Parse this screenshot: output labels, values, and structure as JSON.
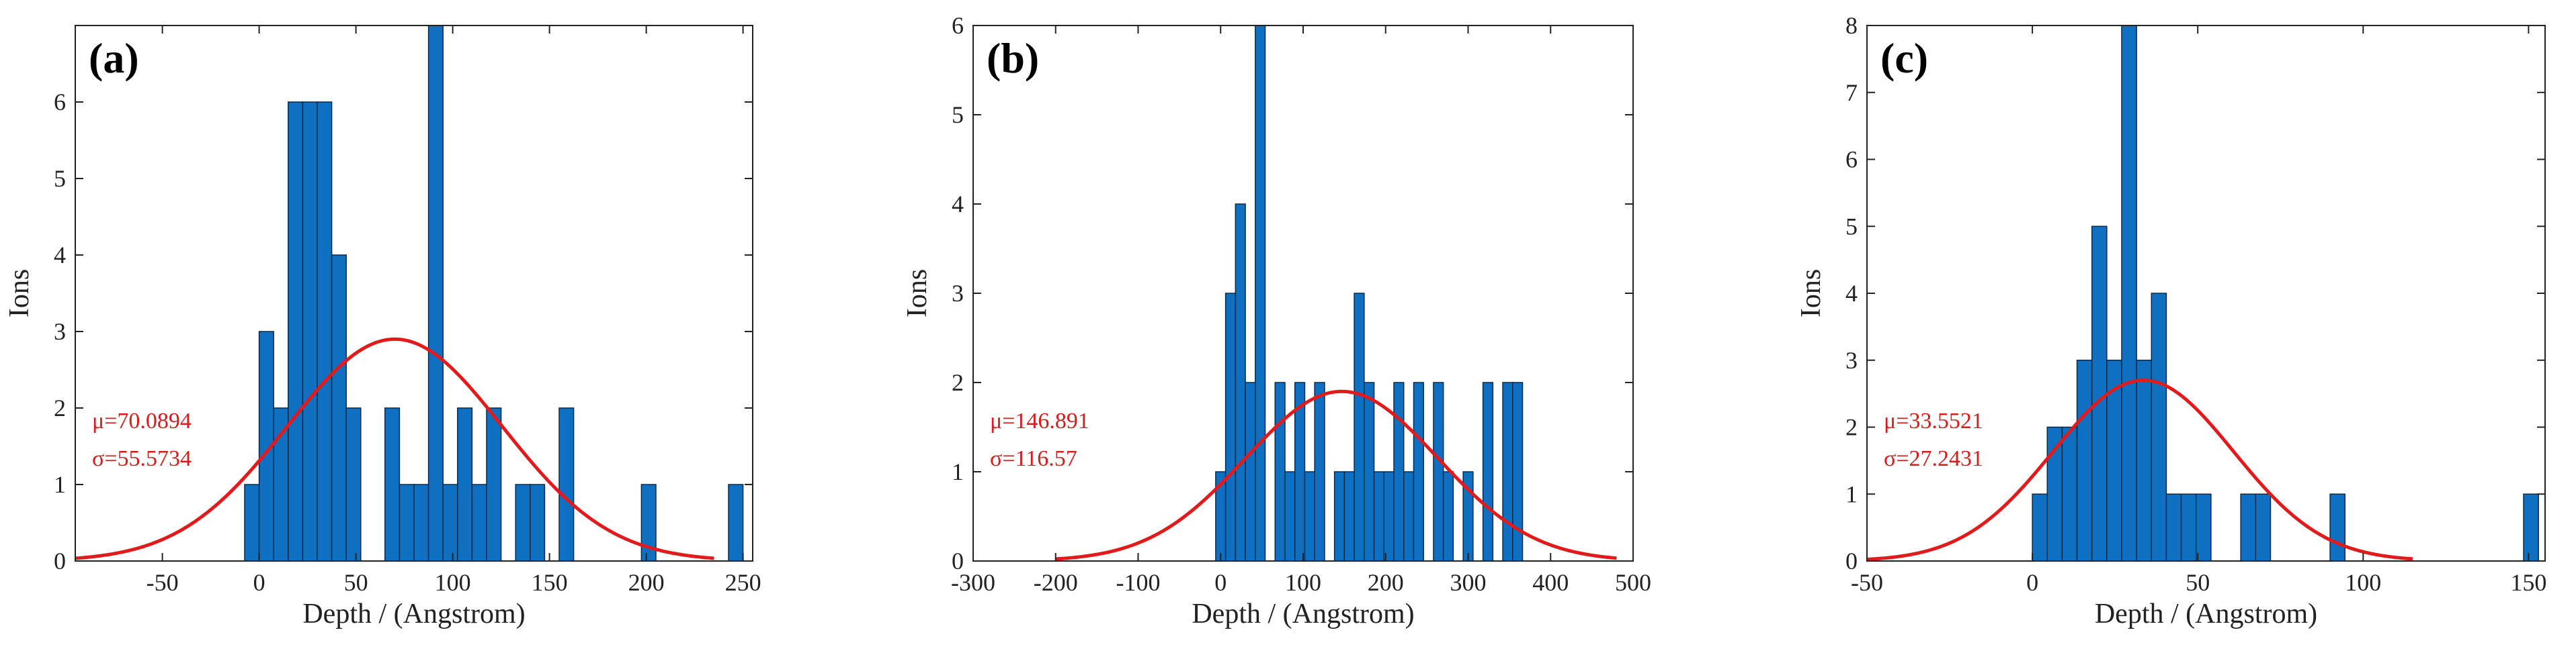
{
  "colors": {
    "bar_fill": "#0f6fc0",
    "bar_edge": "#0b2a4a",
    "fit_curve": "#e31a1c",
    "axis": "#222222",
    "annotation": "#d81b1b"
  },
  "chart_data": [
    {
      "type": "bar",
      "panel_label": "(a)",
      "title": "",
      "xlabel": "Depth / (Angstrom)",
      "ylabel": "Ions",
      "xlim": [
        -95,
        255
      ],
      "ylim": [
        0,
        7
      ],
      "xticks": [
        -50,
        0,
        50,
        100,
        150,
        200,
        250
      ],
      "yticks": [
        0,
        1,
        2,
        3,
        4,
        5,
        6
      ],
      "bin_width": 7.5,
      "bins": [
        {
          "x0": -7.5,
          "count": 1
        },
        {
          "x0": 0,
          "count": 3
        },
        {
          "x0": 7.5,
          "count": 2
        },
        {
          "x0": 15,
          "count": 6
        },
        {
          "x0": 22.5,
          "count": 6
        },
        {
          "x0": 30,
          "count": 6
        },
        {
          "x0": 37.5,
          "count": 4
        },
        {
          "x0": 45,
          "count": 2
        },
        {
          "x0": 65,
          "count": 2
        },
        {
          "x0": 72.5,
          "count": 1
        },
        {
          "x0": 80,
          "count": 1
        },
        {
          "x0": 87.5,
          "count": 7
        },
        {
          "x0": 95,
          "count": 1
        },
        {
          "x0": 102.5,
          "count": 2
        },
        {
          "x0": 110,
          "count": 1
        },
        {
          "x0": 117.5,
          "count": 2
        },
        {
          "x0": 132.5,
          "count": 1
        },
        {
          "x0": 140,
          "count": 1
        },
        {
          "x0": 155,
          "count": 2
        },
        {
          "x0": 197.5,
          "count": 1
        },
        {
          "x0": 242.5,
          "count": 1
        }
      ],
      "fit": {
        "mu": 70.0894,
        "sigma": 55.5734,
        "peak": 2.9,
        "range": [
          -95,
          235
        ]
      },
      "annotation": [
        "μ=70.0894",
        "σ=55.5734"
      ]
    },
    {
      "type": "bar",
      "panel_label": "(b)",
      "title": "",
      "xlabel": "Depth / (Angstrom)",
      "ylabel": "Ions",
      "xlim": [
        -300,
        500
      ],
      "ylim": [
        0,
        6
      ],
      "xticks": [
        -300,
        -200,
        -100,
        0,
        100,
        200,
        300,
        400,
        500
      ],
      "yticks": [
        0,
        1,
        2,
        3,
        4,
        5,
        6
      ],
      "bin_width": 12,
      "bins": [
        {
          "x0": -6,
          "count": 1
        },
        {
          "x0": 6,
          "count": 3
        },
        {
          "x0": 18,
          "count": 4
        },
        {
          "x0": 30,
          "count": 2
        },
        {
          "x0": 42,
          "count": 6
        },
        {
          "x0": 66,
          "count": 2
        },
        {
          "x0": 78,
          "count": 1
        },
        {
          "x0": 90,
          "count": 2
        },
        {
          "x0": 102,
          "count": 1
        },
        {
          "x0": 114,
          "count": 2
        },
        {
          "x0": 138,
          "count": 1
        },
        {
          "x0": 150,
          "count": 1
        },
        {
          "x0": 162,
          "count": 3
        },
        {
          "x0": 174,
          "count": 2
        },
        {
          "x0": 186,
          "count": 1
        },
        {
          "x0": 198,
          "count": 1
        },
        {
          "x0": 210,
          "count": 2
        },
        {
          "x0": 222,
          "count": 1
        },
        {
          "x0": 234,
          "count": 2
        },
        {
          "x0": 258,
          "count": 2
        },
        {
          "x0": 270,
          "count": 1
        },
        {
          "x0": 294,
          "count": 1
        },
        {
          "x0": 318,
          "count": 2
        },
        {
          "x0": 342,
          "count": 2
        },
        {
          "x0": 354,
          "count": 2
        }
      ],
      "fit": {
        "mu": 146.891,
        "sigma": 116.57,
        "peak": 1.9,
        "range": [
          -200,
          480
        ]
      },
      "annotation": [
        "μ=146.891",
        "σ=116.57"
      ]
    },
    {
      "type": "bar",
      "panel_label": "(c)",
      "title": "",
      "xlabel": "Depth / (Angstrom)",
      "ylabel": "Ions",
      "xlim": [
        -50,
        155
      ],
      "ylim": [
        0,
        8
      ],
      "xticks": [
        -50,
        0,
        50,
        100,
        150
      ],
      "yticks": [
        0,
        1,
        2,
        3,
        4,
        5,
        6,
        7,
        8
      ],
      "bin_width": 4.5,
      "bins": [
        {
          "x0": 0,
          "count": 1
        },
        {
          "x0": 4.5,
          "count": 2
        },
        {
          "x0": 9,
          "count": 2
        },
        {
          "x0": 13.5,
          "count": 3
        },
        {
          "x0": 18,
          "count": 5
        },
        {
          "x0": 22.5,
          "count": 3
        },
        {
          "x0": 27,
          "count": 8
        },
        {
          "x0": 31.5,
          "count": 3
        },
        {
          "x0": 36,
          "count": 4
        },
        {
          "x0": 40.5,
          "count": 1
        },
        {
          "x0": 45,
          "count": 1
        },
        {
          "x0": 49.5,
          "count": 1
        },
        {
          "x0": 63,
          "count": 1
        },
        {
          "x0": 67.5,
          "count": 1
        },
        {
          "x0": 90,
          "count": 1
        },
        {
          "x0": 148.5,
          "count": 1
        }
      ],
      "fit": {
        "mu": 33.5521,
        "sigma": 27.2431,
        "peak": 2.7,
        "range": [
          -50,
          115
        ]
      },
      "annotation": [
        "μ=33.5521",
        "σ=27.2431"
      ]
    }
  ]
}
